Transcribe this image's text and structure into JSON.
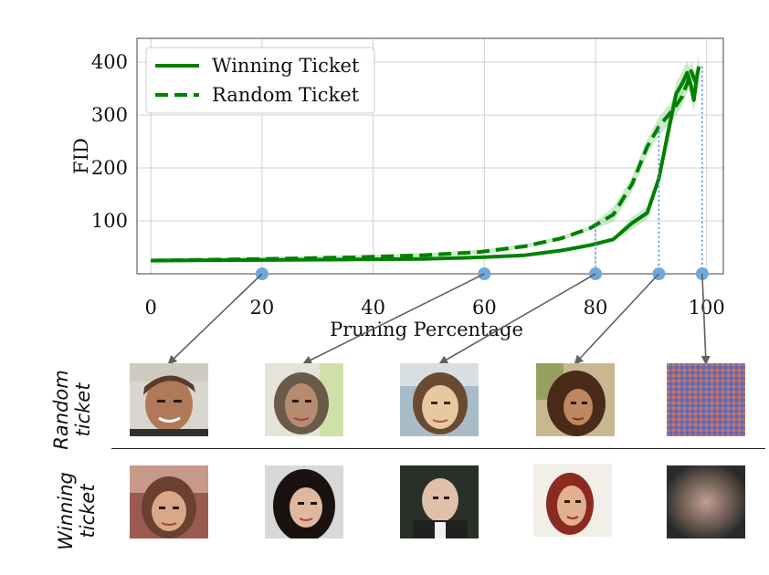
{
  "chart_data": {
    "type": "line",
    "title": "",
    "xlabel": "Pruning Percentage",
    "ylabel": "FID",
    "xlim": [
      -2.5,
      103
    ],
    "ylim": [
      0,
      445
    ],
    "xticks": [
      "0",
      "20",
      "40",
      "60",
      "80",
      "100"
    ],
    "xtick_values": [
      0,
      20,
      40,
      60,
      80,
      100
    ],
    "yticks": [
      "100",
      "200",
      "300",
      "400"
    ],
    "ytick_values": [
      100,
      200,
      300,
      400
    ],
    "grid": true,
    "legend_position": "top-left",
    "series": [
      {
        "name": "Winning Ticket",
        "style": "solid",
        "color": "#008000",
        "x": [
          0,
          20,
          36,
          48.8,
          59,
          67.2,
          73.8,
          79,
          83.2,
          86.6,
          89.3,
          91.4,
          93.1,
          94.5,
          95.6,
          96.5,
          97.2,
          97.7,
          98.2,
          98.6
        ],
        "y": [
          25,
          26,
          27,
          28,
          31,
          35,
          44,
          54,
          65,
          96,
          115,
          180,
          270,
          340,
          360,
          380,
          355,
          328,
          370,
          392
        ]
      },
      {
        "name": "Random Ticket",
        "style": "dashed",
        "color": "#008000",
        "x": [
          0,
          20,
          36,
          48.8,
          59,
          67.2,
          73.8,
          79,
          83.2,
          86.6,
          89.3,
          91.4,
          93.1,
          94.5,
          95.6,
          96.5,
          97.2,
          97.7,
          98.2,
          98.6
        ],
        "y": [
          25,
          28,
          31,
          35,
          41,
          52,
          67,
          86,
          112,
          170,
          240,
          278,
          300,
          318,
          335,
          360,
          383,
          370,
          358,
          365
        ]
      }
    ],
    "marked_points_x": [
      20,
      60,
      80,
      91.4,
      99.2
    ]
  },
  "sample_rows": [
    {
      "label_line1": "Random",
      "label_line2": "ticket"
    },
    {
      "label_line1": "Winning",
      "label_line2": "ticket"
    }
  ],
  "colors": {
    "series": "#008000",
    "band": "#9fd89f",
    "marker": "#6fa8dc",
    "guide": "#4a86e8",
    "arrow": "#5f5f5f"
  }
}
